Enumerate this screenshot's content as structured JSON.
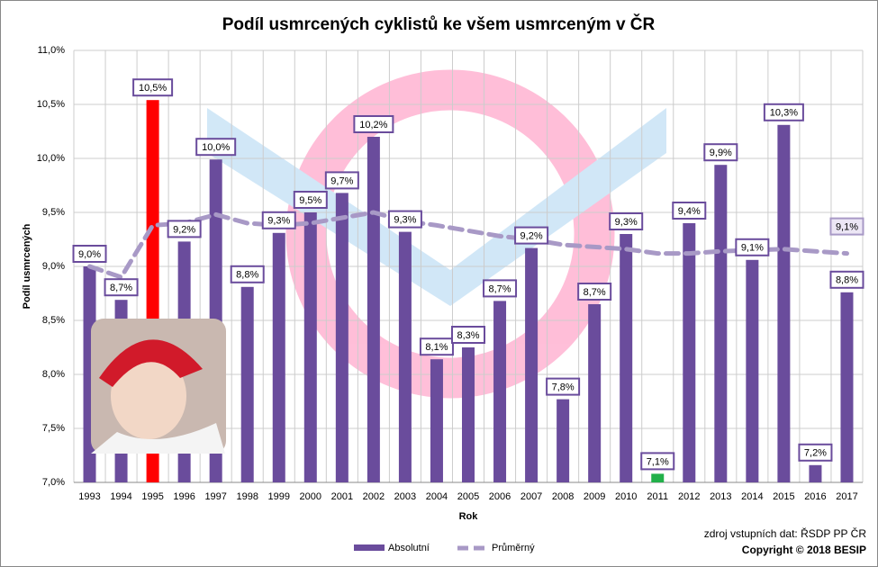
{
  "chart_data": {
    "type": "bar",
    "title": "Podíl usmrcených cyklistů ke všem usmrceným v ČR",
    "y_label": "Podíl usmrcených",
    "x_label": "Rok",
    "source": "zdroj vstupních dat: ŘSDP PP ČR",
    "copyright": "Copyright © 2018 BESIP",
    "categories": [
      "1993",
      "1994",
      "1995",
      "1996",
      "1997",
      "1998",
      "1999",
      "2000",
      "2001",
      "2002",
      "2003",
      "2004",
      "2005",
      "2006",
      "2007",
      "2008",
      "2009",
      "2010",
      "2011",
      "2012",
      "2013",
      "2014",
      "2015",
      "2016",
      "2017"
    ],
    "series": [
      {
        "name": "Absolutní",
        "color": "#6a4c9c",
        "colors": [
          "#6a4c9c",
          "#6a4c9c",
          "#ff0000",
          "#6a4c9c",
          "#6a4c9c",
          "#6a4c9c",
          "#6a4c9c",
          "#6a4c9c",
          "#6a4c9c",
          "#6a4c9c",
          "#6a4c9c",
          "#6a4c9c",
          "#6a4c9c",
          "#6a4c9c",
          "#6a4c9c",
          "#6a4c9c",
          "#6a4c9c",
          "#6a4c9c",
          "#22b04a",
          "#6a4c9c",
          "#6a4c9c",
          "#6a4c9c",
          "#6a4c9c",
          "#6a4c9c",
          "#6a4c9c"
        ],
        "values": [
          9.0,
          8.69,
          10.54,
          9.23,
          9.99,
          8.81,
          9.31,
          9.5,
          9.68,
          10.2,
          9.32,
          8.14,
          8.25,
          8.68,
          9.17,
          7.77,
          8.65,
          9.3,
          7.08,
          9.4,
          9.94,
          9.06,
          10.31,
          7.16,
          8.76
        ],
        "value_labels": [
          "9,0%",
          "8,7%",
          "10,5%",
          "9,2%",
          "10,0%",
          "8,8%",
          "9,3%",
          "9,5%",
          "9,7%",
          "10,2%",
          "9,3%",
          "8,1%",
          "8,3%",
          "8,7%",
          "9,2%",
          "7,8%",
          "8,7%",
          "9,3%",
          "7,1%",
          "9,4%",
          "9,9%",
          "9,1%",
          "10,3%",
          "7,2%",
          "8,8%"
        ]
      },
      {
        "name": "Průměrný",
        "type": "line",
        "color": "#a899c6",
        "values": [
          9.0,
          8.9,
          9.38,
          9.4,
          9.48,
          9.4,
          9.38,
          9.4,
          9.45,
          9.5,
          9.42,
          9.38,
          9.33,
          9.28,
          9.25,
          9.2,
          9.18,
          9.16,
          9.12,
          9.12,
          9.14,
          9.15,
          9.16,
          9.14,
          9.12
        ],
        "value_labels": [
          null,
          null,
          null,
          null,
          null,
          null,
          null,
          null,
          null,
          null,
          null,
          null,
          null,
          null,
          null,
          null,
          null,
          null,
          null,
          null,
          null,
          null,
          null,
          null,
          "9,1%"
        ]
      }
    ],
    "ylim": [
      7.0,
      11.0
    ],
    "yticks": [
      {
        "value": 7.0,
        "label": "7,0%"
      },
      {
        "value": 7.5,
        "label": "7,5%"
      },
      {
        "value": 8.0,
        "label": "8,0%"
      },
      {
        "value": 8.5,
        "label": "8,5%"
      },
      {
        "value": 9.0,
        "label": "9,0%"
      },
      {
        "value": 9.5,
        "label": "9,5%"
      },
      {
        "value": 10.0,
        "label": "10,0%"
      },
      {
        "value": 10.5,
        "label": "10,5%"
      },
      {
        "value": 11.0,
        "label": "11,0%"
      }
    ],
    "grid": true,
    "legend": "bottom"
  }
}
